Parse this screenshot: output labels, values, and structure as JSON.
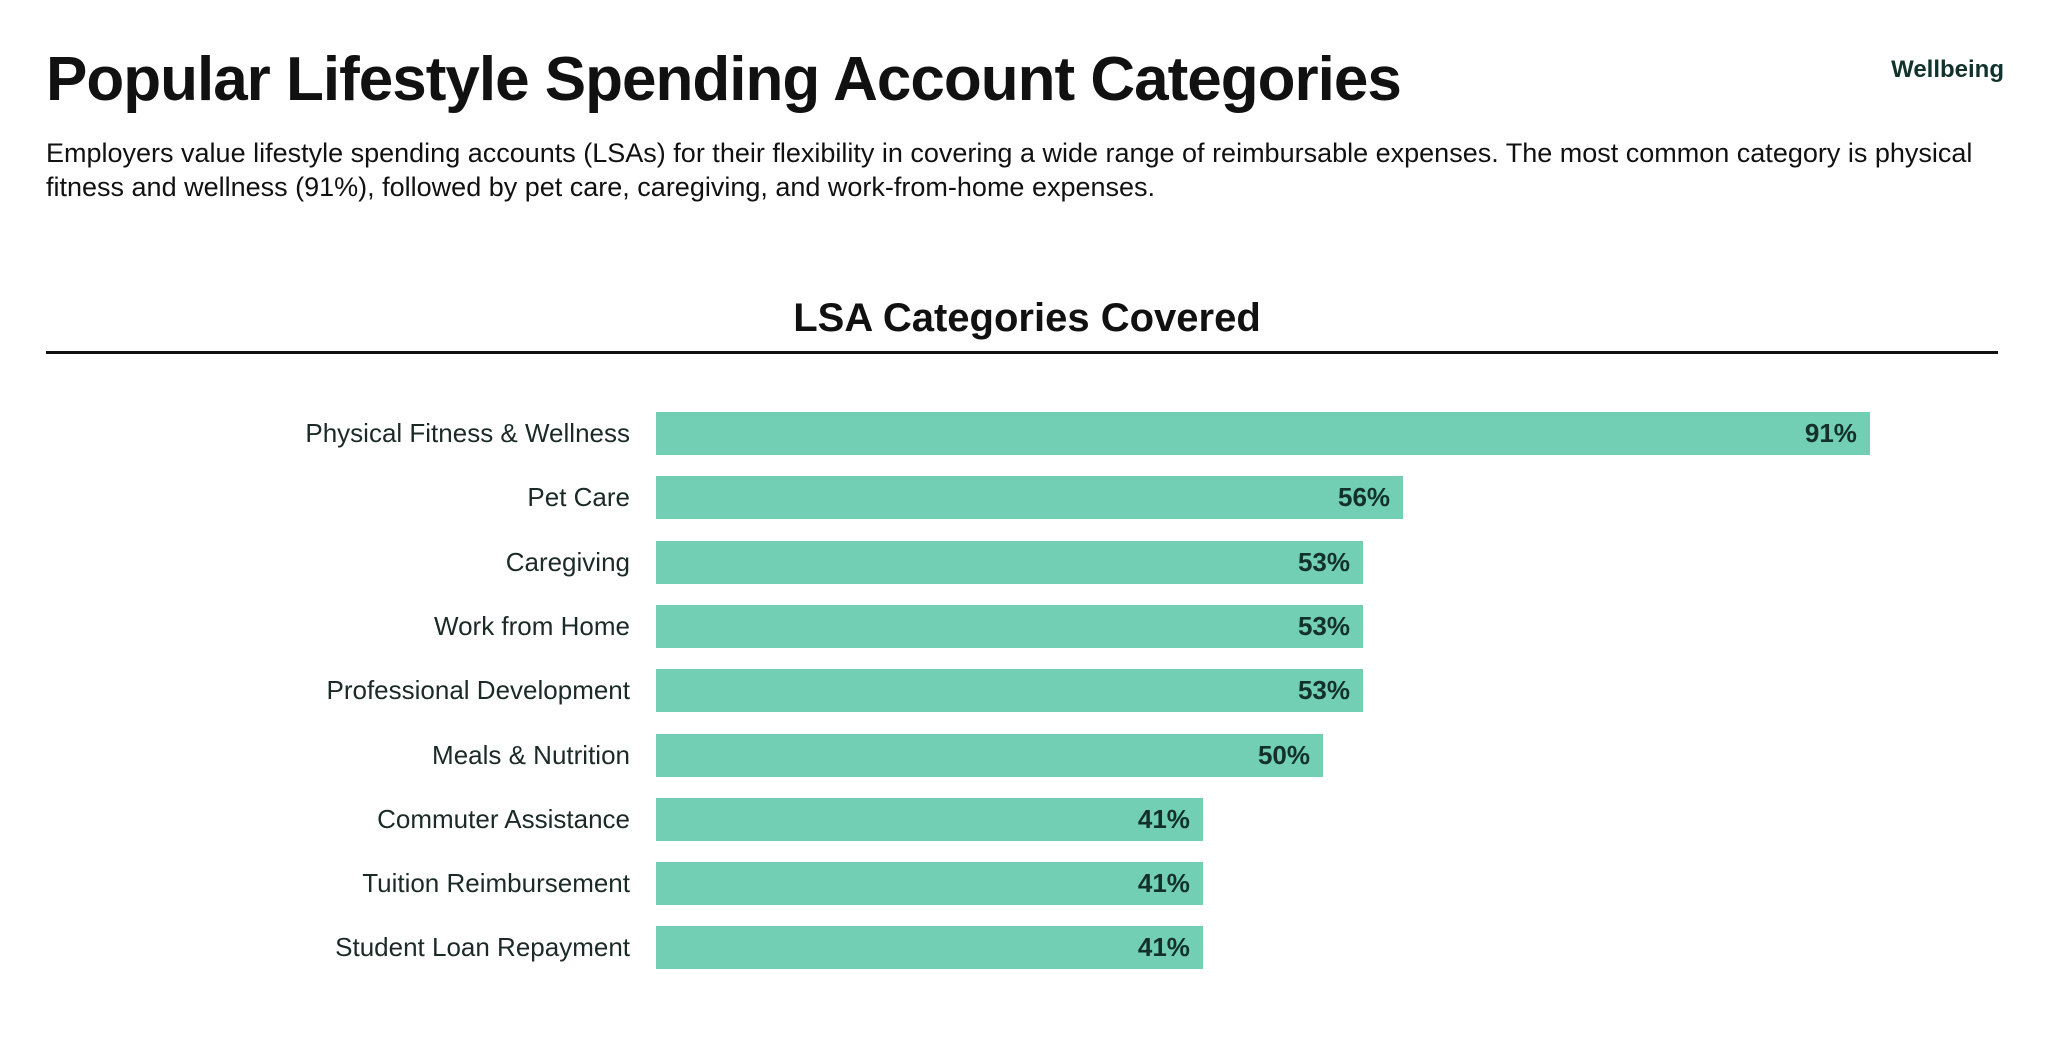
{
  "header": {
    "title": "Popular Lifestyle Spending Account Categories",
    "tag": "Wellbeing",
    "description": "Employers value lifestyle spending accounts (LSAs) for their flexibility in covering a wide range of reimbursable expenses. The most common category is physical fitness and wellness (91%), followed by pet care, caregiving, and work-from-home expenses."
  },
  "chart_data": {
    "type": "bar",
    "orientation": "horizontal",
    "title": "LSA Categories Covered",
    "xlabel": "",
    "ylabel": "",
    "xlim": [
      0,
      100
    ],
    "grid": false,
    "bar_color": "#72cfb3",
    "categories": [
      "Physical Fitness & Wellness",
      "Pet Care",
      "Caregiving",
      "Work from Home",
      "Professional Development",
      "Meals & Nutrition",
      "Commuter Assistance",
      "Tuition Reimbursement",
      "Student Loan Repayment"
    ],
    "values": [
      91,
      56,
      53,
      53,
      53,
      50,
      41,
      41,
      41
    ],
    "value_labels": [
      "91%",
      "56%",
      "53%",
      "53%",
      "53%",
      "50%",
      "41%",
      "41%",
      "41%"
    ]
  }
}
